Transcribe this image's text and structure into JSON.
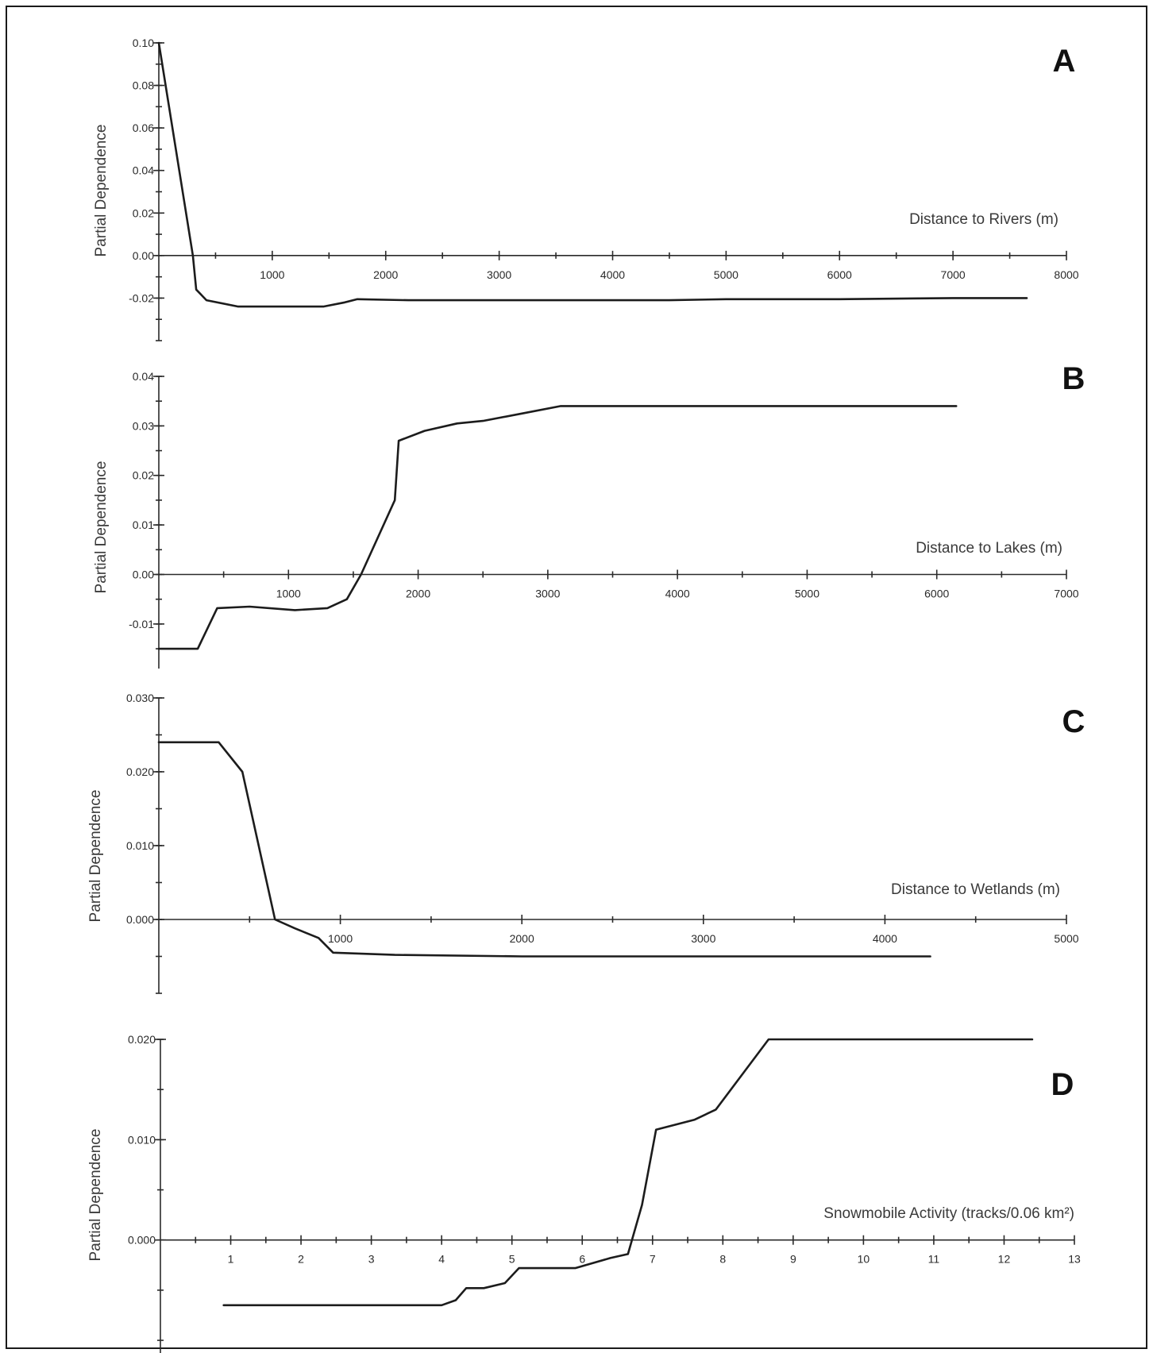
{
  "chart_data": [
    {
      "type": "line",
      "panel": "A",
      "xlabel": "Distance to Rivers (m)",
      "ylabel": "Partial Dependence",
      "xlim": [
        0,
        8000
      ],
      "ylim": [
        -0.04,
        0.1
      ],
      "xticks": [
        1000,
        2000,
        3000,
        4000,
        5000,
        6000,
        7000,
        8000
      ],
      "xtick_labels": [
        "1000",
        "2000",
        "3000",
        "4000",
        "5000",
        "6000",
        "7000",
        "8000"
      ],
      "yticks": [
        0.1,
        0.08,
        0.06,
        0.04,
        0.02,
        0.0,
        -0.02
      ],
      "ytick_labels": [
        "0.10",
        "0.08",
        "0.06",
        "0.04",
        "0.02",
        "0.00",
        "-0.02"
      ],
      "x": [
        0,
        300,
        330,
        420,
        700,
        1450,
        1640,
        1750,
        2200,
        2800,
        3500,
        4500,
        5000,
        6000,
        7000,
        7650
      ],
      "y": [
        0.1,
        0.0,
        -0.016,
        -0.021,
        -0.024,
        -0.024,
        -0.022,
        -0.0205,
        -0.021,
        -0.021,
        -0.021,
        -0.021,
        -0.0205,
        -0.0205,
        -0.02,
        -0.02
      ]
    },
    {
      "type": "line",
      "panel": "B",
      "xlabel": "Distance to Lakes (m)",
      "ylabel": "Partial Dependence",
      "xlim": [
        0,
        7000
      ],
      "ylim": [
        -0.019,
        0.04
      ],
      "xticks": [
        1000,
        2000,
        3000,
        4000,
        5000,
        6000,
        7000
      ],
      "xtick_labels": [
        "1000",
        "2000",
        "3000",
        "4000",
        "5000",
        "6000",
        "7000"
      ],
      "yticks": [
        0.04,
        0.03,
        0.02,
        0.01,
        0.0,
        -0.01
      ],
      "ytick_labels": [
        "0.04",
        "0.03",
        "0.02",
        "0.01",
        "0.00",
        "-0.01"
      ],
      "x": [
        0,
        300,
        450,
        700,
        1050,
        1300,
        1450,
        1560,
        1820,
        1850,
        2050,
        2300,
        2500,
        2800,
        3100,
        6150
      ],
      "y": [
        -0.015,
        -0.015,
        -0.0068,
        -0.0065,
        -0.0072,
        -0.0068,
        -0.005,
        0.0,
        0.015,
        0.027,
        0.029,
        0.0305,
        0.031,
        0.0325,
        0.034,
        0.034
      ]
    },
    {
      "type": "line",
      "panel": "C",
      "xlabel": "Distance to Wetlands (m)",
      "ylabel": "Partial Dependence",
      "xlim": [
        0,
        5000
      ],
      "ylim": [
        -0.01,
        0.03
      ],
      "xticks": [
        1000,
        2000,
        3000,
        4000,
        5000
      ],
      "xtick_labels": [
        "1000",
        "2000",
        "3000",
        "4000",
        "5000"
      ],
      "yticks": [
        0.03,
        0.02,
        0.01,
        0.0
      ],
      "ytick_labels": [
        "0.030",
        "0.020",
        "0.010",
        "0.000"
      ],
      "x": [
        0,
        330,
        460,
        640,
        750,
        880,
        960,
        1300,
        2000,
        3000,
        4250
      ],
      "y": [
        0.024,
        0.024,
        0.02,
        0.0,
        -0.0012,
        -0.0025,
        -0.0045,
        -0.0048,
        -0.005,
        -0.005,
        -0.005
      ]
    },
    {
      "type": "line",
      "panel": "D",
      "xlabel": "Snowmobile Activity (tracks/0.06 km²)",
      "ylabel": "Partial Dependence",
      "xlim": [
        0,
        13
      ],
      "ylim": [
        -0.0115,
        0.02
      ],
      "xticks": [
        1,
        2,
        3,
        4,
        5,
        6,
        7,
        8,
        9,
        10,
        11,
        12,
        13
      ],
      "xtick_labels": [
        "1",
        "2",
        "3",
        "4",
        "5",
        "6",
        "7",
        "8",
        "9",
        "10",
        "11",
        "12",
        "13"
      ],
      "yticks": [
        0.02,
        0.01,
        0.0
      ],
      "ytick_labels": [
        "0.020",
        "0.010",
        "0.000"
      ],
      "x": [
        0.9,
        2.5,
        4.0,
        4.2,
        4.35,
        4.6,
        4.9,
        5.1,
        5.9,
        6.4,
        6.65,
        6.85,
        7.05,
        7.6,
        7.9,
        8.65,
        12.4
      ],
      "y": [
        -0.0065,
        -0.0065,
        -0.0065,
        -0.006,
        -0.0048,
        -0.0048,
        -0.0043,
        -0.0028,
        -0.0028,
        -0.0018,
        -0.0014,
        0.0035,
        0.011,
        0.012,
        0.013,
        0.02,
        0.02
      ]
    }
  ]
}
